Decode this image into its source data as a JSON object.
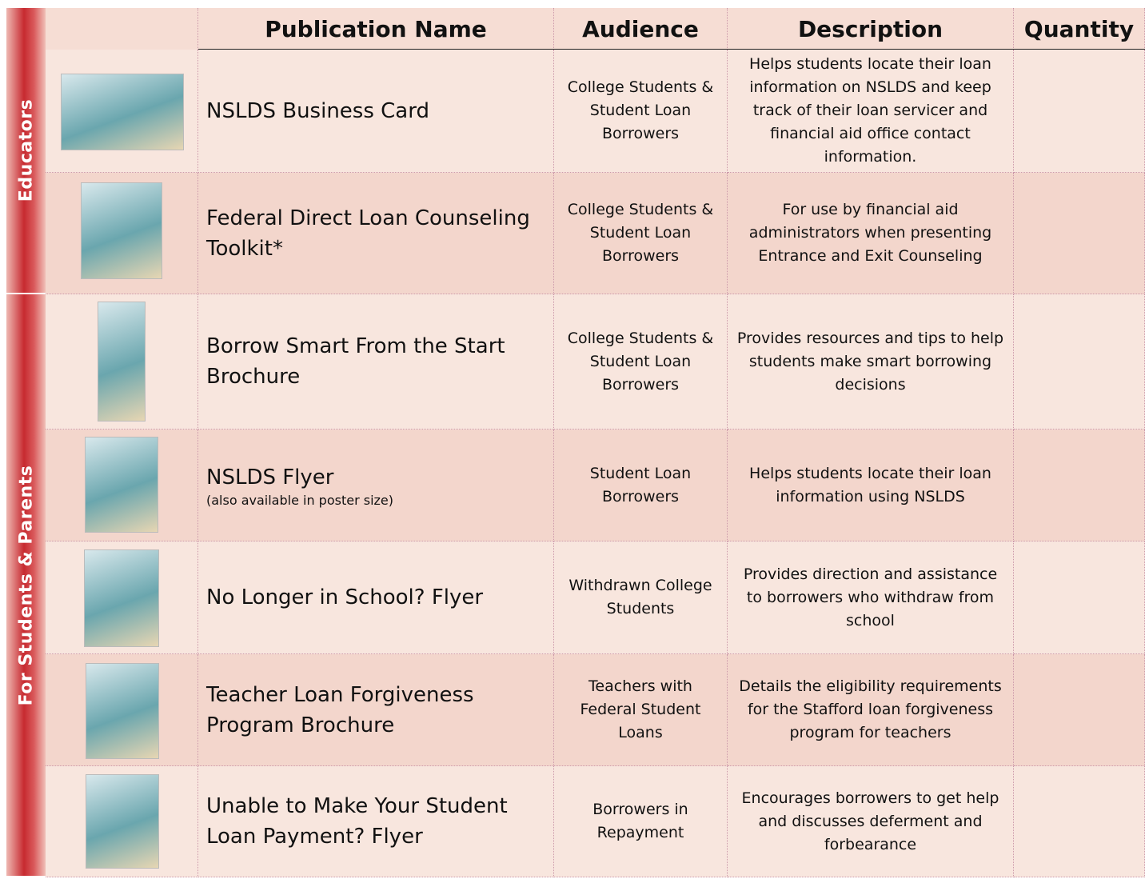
{
  "header": {
    "columns": [
      "Publication Name",
      "Audience",
      "Description",
      "Quantity"
    ]
  },
  "sections": [
    {
      "label": "Educators",
      "rows": [
        {
          "name": "NSLDS Business Card",
          "audience": "College Students & Student Loan Borrowers",
          "description": "Helps students locate their loan information on NSLDS and keep track of their loan servicer and financial aid office contact information."
        },
        {
          "name": "Federal Direct Loan Counseling Toolkit*",
          "audience": "College Students & Student Loan Borrowers",
          "description": "For use by financial aid administrators when presenting Entrance and Exit Counseling"
        }
      ]
    },
    {
      "label": "For Students & Parents",
      "rows": [
        {
          "name": "Borrow Smart From the Start Brochure",
          "audience": "College Students & Student Loan Borrowers",
          "description": "Provides resources and tips to help students make smart borrowing decisions"
        },
        {
          "name": "NSLDS Flyer",
          "note": "(also available in poster size)",
          "audience": "Student Loan Borrowers",
          "description": "Helps students locate their loan information using NSLDS"
        },
        {
          "name": "No Longer in School? Flyer",
          "audience": "Withdrawn College Students",
          "description": "Provides direction and assistance to borrowers who withdraw from school"
        },
        {
          "name": "Teacher Loan Forgiveness Program Brochure",
          "audience": "Teachers with Federal Student Loans",
          "description": "Details the eligibility requirements for the Stafford loan forgiveness program for teachers"
        },
        {
          "name": "Unable to Make Your Student Loan Payment? Flyer",
          "audience": "Borrowers in Repayment",
          "description": "Encourages borrowers to get help and discusses deferment and forbearance"
        }
      ]
    }
  ]
}
